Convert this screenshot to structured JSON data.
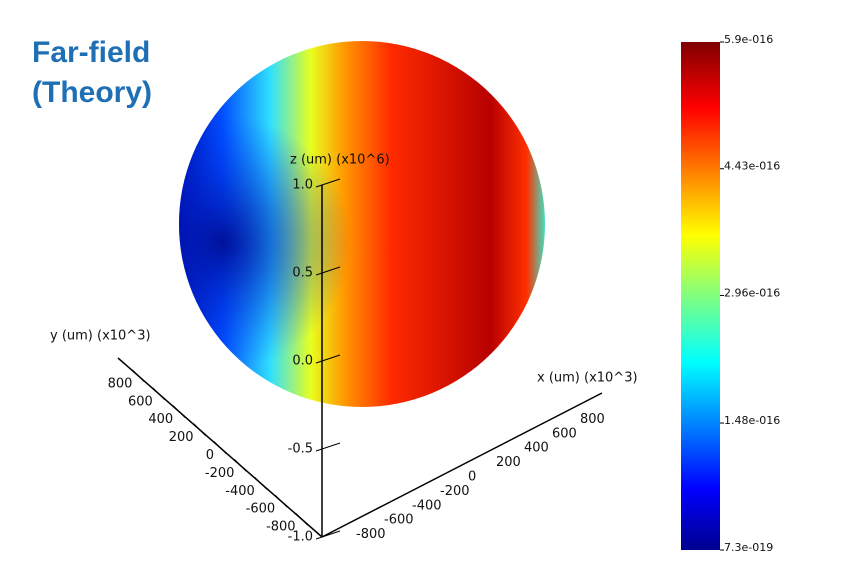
{
  "chart_data": {
    "type": "sphere",
    "title_lines": [
      "Far-field",
      "(Theory)"
    ],
    "colormap": "jet",
    "clim": [
      7.3e-19,
      5.9e-16
    ],
    "cticks": [
      {
        "value": 5.9e-16,
        "label": "5.9e-016"
      },
      {
        "value": 4.43e-16,
        "label": "4.43e-016"
      },
      {
        "value": 2.96e-16,
        "label": "2.96e-016"
      },
      {
        "value": 1.48e-16,
        "label": "1.48e-016"
      },
      {
        "value": 7.3e-19,
        "label": "7.3e-019"
      }
    ],
    "xlabel": "x (um) (x10^3)",
    "ylabel": "y (um) (x10^3)",
    "zlabel": "z (um) (x10^6)",
    "xlim": [
      -1000,
      1000
    ],
    "ylim": [
      -1000,
      1000
    ],
    "zlim": [
      -1,
      1
    ],
    "xticks": [
      -800,
      -600,
      -400,
      -200,
      0,
      200,
      400,
      600,
      800
    ],
    "yticks": [
      -800,
      -600,
      -400,
      -200,
      0,
      200,
      400,
      600,
      800
    ],
    "zticks": [
      {
        "value": 1,
        "label": "1.0"
      },
      {
        "value": 0.5,
        "label": "0.5"
      },
      {
        "value": 0,
        "label": "0.0"
      },
      {
        "value": -0.5,
        "label": "-0.5"
      },
      {
        "value": -1,
        "label": "-1.0"
      }
    ]
  }
}
